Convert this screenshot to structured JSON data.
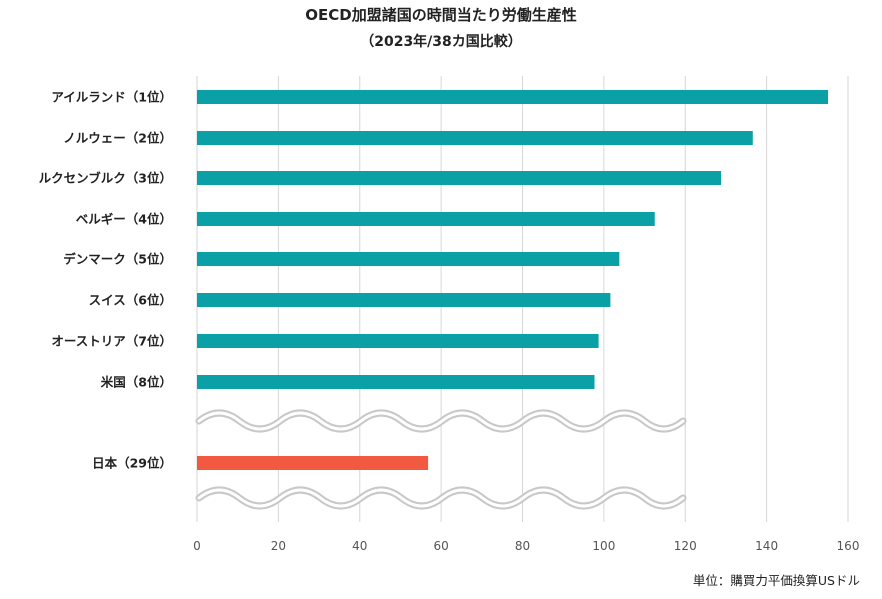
{
  "chart_data": {
    "type": "bar",
    "orientation": "horizontal",
    "title": "OECD加盟諸国の時間当たり労働生産性",
    "subtitle": "（2023年/38カ国比較）",
    "unit_note": "単位：購買力平価換算USドル",
    "categories": [
      "アイルランド（1位）",
      "ノルウェー（2位）",
      "ルクセンブルク（3位）",
      "ベルギー（4位）",
      "デンマーク（5位）",
      "スイス（6位）",
      "オーストリア（7位）",
      "米国（8位）",
      "日本（29位）"
    ],
    "values": [
      155.1,
      136.6,
      128.8,
      112.5,
      103.8,
      101.6,
      98.7,
      97.7,
      56.8
    ],
    "bar_colors": [
      "#0aa0a6",
      "#0aa0a6",
      "#0aa0a6",
      "#0aa0a6",
      "#0aa0a6",
      "#0aa0a6",
      "#0aa0a6",
      "#0aa0a6",
      "#f15a40"
    ],
    "x_ticks": [
      0,
      20,
      40,
      60,
      80,
      100,
      120,
      140,
      160
    ],
    "xlim": [
      0,
      160
    ],
    "grid": true,
    "axis_break_after": "米国（8位）",
    "colors": {
      "teal": "#0aa0a6",
      "japan": "#f15a40",
      "grid": "#d6d6d6"
    }
  }
}
